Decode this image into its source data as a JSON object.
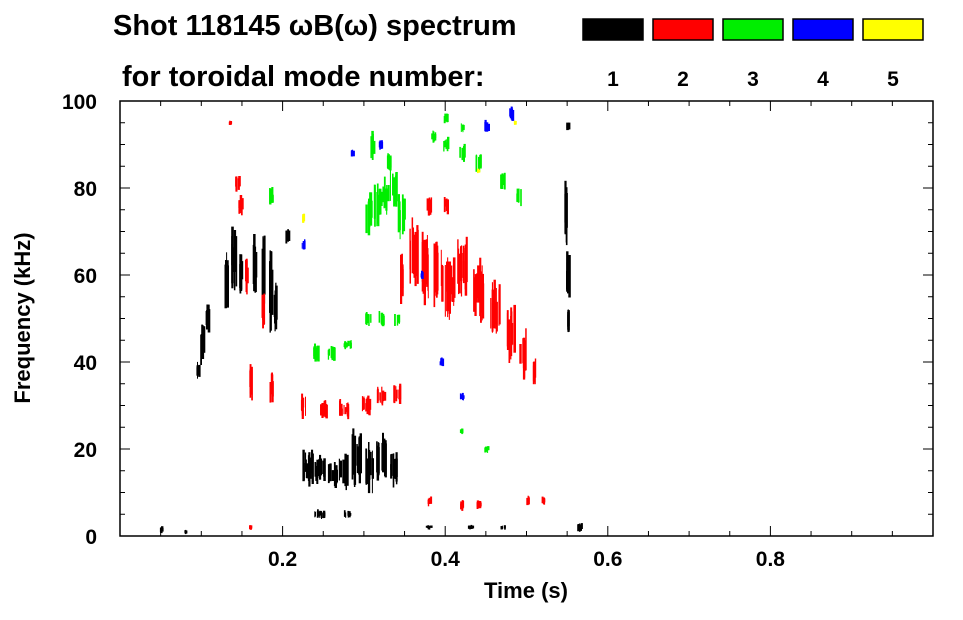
{
  "chart_data": {
    "type": "scatter",
    "title_line1": "Shot 118145 ωB(ω) spectrum",
    "title_line2": "for toroidal mode number:",
    "xlabel": "Time (s)",
    "ylabel": "Frequency (kHz)",
    "xlim": [
      0.0,
      1.0
    ],
    "ylim": [
      0,
      100
    ],
    "xticks": [
      0.2,
      0.4,
      0.6,
      0.8
    ],
    "xtick_labels": [
      "0.2",
      "0.4",
      "0.6",
      "0.8"
    ],
    "yticks": [
      0,
      20,
      40,
      60,
      80,
      100
    ],
    "ytick_labels": [
      "0",
      "20",
      "40",
      "60",
      "80",
      "100"
    ],
    "legend": [
      {
        "label": "1",
        "color": "#000000"
      },
      {
        "label": "2",
        "color": "#ff0000"
      },
      {
        "label": "3",
        "color": "#00ee00"
      },
      {
        "label": "4",
        "color": "#0000ff"
      },
      {
        "label": "5",
        "color": "#ffff00"
      }
    ],
    "series": [
      {
        "name": "n=1",
        "color": "#000000",
        "points": [
          [
            0.05,
            1.5,
            0.002,
            1.5
          ],
          [
            0.08,
            1,
            0.002,
            1
          ],
          [
            0.095,
            38,
            0.004,
            4
          ],
          [
            0.1,
            44,
            0.006,
            8
          ],
          [
            0.107,
            50,
            0.004,
            6
          ],
          [
            0.13,
            58,
            0.006,
            14
          ],
          [
            0.14,
            64,
            0.008,
            14
          ],
          [
            0.148,
            60,
            0.005,
            10
          ],
          [
            0.165,
            62,
            0.004,
            14
          ],
          [
            0.175,
            60,
            0.004,
            16
          ],
          [
            0.185,
            58,
            0.004,
            20
          ],
          [
            0.19,
            52,
            0.003,
            12
          ],
          [
            0.205,
            69,
            0.004,
            3
          ],
          [
            0.23,
            16,
            0.012,
            8
          ],
          [
            0.245,
            15,
            0.012,
            6
          ],
          [
            0.26,
            14,
            0.012,
            6
          ],
          [
            0.275,
            15,
            0.012,
            8
          ],
          [
            0.29,
            18,
            0.012,
            12
          ],
          [
            0.305,
            16,
            0.01,
            10
          ],
          [
            0.32,
            18,
            0.012,
            10
          ],
          [
            0.335,
            16,
            0.01,
            8
          ],
          [
            0.245,
            5,
            0.012,
            2
          ],
          [
            0.28,
            5,
            0.01,
            1.5
          ],
          [
            0.38,
            2,
            0.008,
            1
          ],
          [
            0.43,
            2,
            0.006,
            1
          ],
          [
            0.47,
            2,
            0.006,
            1
          ],
          [
            0.548,
            74,
            0.003,
            14
          ],
          [
            0.55,
            60,
            0.003,
            10
          ],
          [
            0.55,
            50,
            0.003,
            6
          ],
          [
            0.55,
            94,
            0.002,
            2
          ],
          [
            0.565,
            2,
            0.006,
            2
          ]
        ]
      },
      {
        "name": "n=2",
        "color": "#ff0000",
        "points": [
          [
            0.135,
            95,
            0.002,
            1
          ],
          [
            0.143,
            81,
            0.006,
            4
          ],
          [
            0.148,
            76,
            0.006,
            4
          ],
          [
            0.155,
            60,
            0.003,
            8
          ],
          [
            0.16,
            36,
            0.003,
            8
          ],
          [
            0.175,
            52,
            0.003,
            8
          ],
          [
            0.185,
            34,
            0.003,
            8
          ],
          [
            0.225,
            30,
            0.006,
            5
          ],
          [
            0.25,
            29,
            0.012,
            4
          ],
          [
            0.275,
            29,
            0.012,
            4
          ],
          [
            0.3,
            30,
            0.012,
            4
          ],
          [
            0.32,
            32,
            0.01,
            4
          ],
          [
            0.34,
            33,
            0.01,
            5
          ],
          [
            0.345,
            60,
            0.004,
            12
          ],
          [
            0.36,
            65,
            0.01,
            14
          ],
          [
            0.375,
            62,
            0.012,
            16
          ],
          [
            0.39,
            60,
            0.012,
            14
          ],
          [
            0.405,
            58,
            0.012,
            14
          ],
          [
            0.42,
            62,
            0.012,
            12
          ],
          [
            0.44,
            56,
            0.012,
            14
          ],
          [
            0.46,
            52,
            0.012,
            12
          ],
          [
            0.48,
            46,
            0.01,
            12
          ],
          [
            0.495,
            42,
            0.008,
            10
          ],
          [
            0.51,
            38,
            0.006,
            6
          ],
          [
            0.38,
            76,
            0.006,
            4
          ],
          [
            0.4,
            76,
            0.004,
            4
          ],
          [
            0.38,
            8,
            0.004,
            2
          ],
          [
            0.42,
            7,
            0.004,
            2
          ],
          [
            0.44,
            7,
            0.004,
            2
          ],
          [
            0.5,
            8,
            0.004,
            2
          ],
          [
            0.52,
            8,
            0.004,
            2
          ],
          [
            0.16,
            2,
            0.004,
            1
          ]
        ]
      },
      {
        "name": "n=3",
        "color": "#00ee00",
        "points": [
          [
            0.185,
            78,
            0.004,
            4
          ],
          [
            0.24,
            42,
            0.01,
            4
          ],
          [
            0.26,
            42,
            0.01,
            3
          ],
          [
            0.28,
            44,
            0.01,
            2
          ],
          [
            0.305,
            74,
            0.008,
            8
          ],
          [
            0.315,
            76,
            0.008,
            10
          ],
          [
            0.325,
            78,
            0.008,
            8
          ],
          [
            0.335,
            80,
            0.008,
            8
          ],
          [
            0.345,
            74,
            0.008,
            10
          ],
          [
            0.31,
            90,
            0.004,
            6
          ],
          [
            0.33,
            86,
            0.004,
            4
          ],
          [
            0.305,
            50,
            0.008,
            3
          ],
          [
            0.32,
            50,
            0.008,
            3
          ],
          [
            0.34,
            50,
            0.006,
            3
          ],
          [
            0.385,
            92,
            0.006,
            3
          ],
          [
            0.4,
            90,
            0.006,
            3
          ],
          [
            0.42,
            88,
            0.006,
            4
          ],
          [
            0.44,
            86,
            0.006,
            4
          ],
          [
            0.47,
            82,
            0.006,
            4
          ],
          [
            0.49,
            78,
            0.006,
            4
          ],
          [
            0.4,
            96,
            0.004,
            2
          ],
          [
            0.42,
            94,
            0.004,
            2
          ],
          [
            0.42,
            24,
            0.004,
            1.5
          ],
          [
            0.45,
            20,
            0.004,
            1.5
          ]
        ]
      },
      {
        "name": "n=4",
        "color": "#0000ff",
        "points": [
          [
            0.225,
            67,
            0.003,
            2
          ],
          [
            0.285,
            88,
            0.003,
            1.5
          ],
          [
            0.32,
            90,
            0.004,
            2
          ],
          [
            0.37,
            60,
            0.004,
            2
          ],
          [
            0.395,
            40,
            0.004,
            2
          ],
          [
            0.42,
            32,
            0.004,
            2
          ],
          [
            0.45,
            94,
            0.004,
            3
          ],
          [
            0.48,
            97,
            0.004,
            3
          ]
        ]
      },
      {
        "name": "n=5",
        "color": "#ffff00",
        "points": [
          [
            0.225,
            73,
            0.003,
            2
          ],
          [
            0.44,
            84,
            0.002,
            1
          ],
          [
            0.485,
            95,
            0.002,
            1
          ]
        ]
      }
    ]
  }
}
